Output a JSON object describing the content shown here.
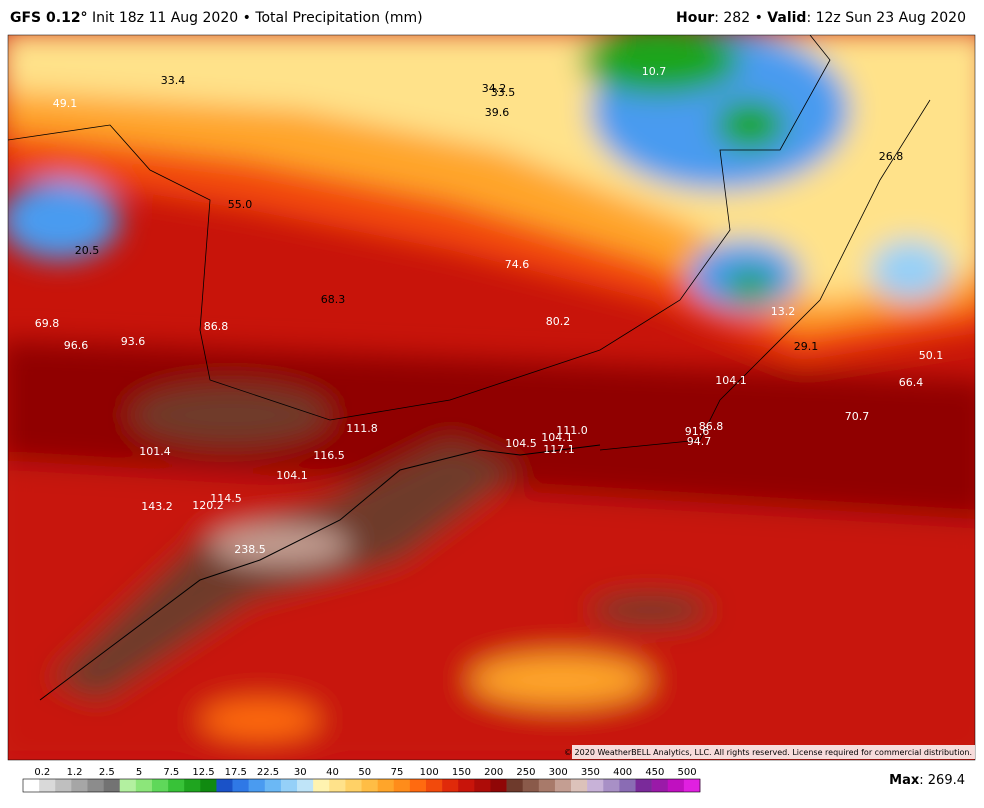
{
  "header": {
    "model": "GFS 0.12°",
    "init": "Init 18z 11 Aug 2020",
    "separator": "•",
    "product": "Total Precipitation (mm)",
    "hour_label": "Hour",
    "hour": "282",
    "valid_label": "Valid",
    "valid": "12z Sun 23 Aug 2020"
  },
  "map": {
    "labels": [
      "33.4",
      "49.1",
      "34.2",
      "33.5",
      "39.6",
      "10.7",
      "26.8",
      "55.0",
      "20.5",
      "74.6",
      "68.3",
      "13.2",
      "69.8",
      "86.8",
      "80.2",
      "96.6",
      "93.6",
      "29.1",
      "50.1",
      "104.1",
      "66.4",
      "70.7",
      "111.8",
      "111.0",
      "91.6",
      "86.8",
      "104.1",
      "104.5",
      "94.7",
      "117.1",
      "101.4",
      "116.5",
      "104.1",
      "114.5",
      "143.2",
      "120.2",
      "238.5"
    ],
    "copyright": "© 2020 WeatherBELL Analytics, LLC. All rights reserved. License required for commercial distribution."
  },
  "colorbar": {
    "ticks": [
      "0.2",
      "1.2",
      "2.5",
      "5",
      "7.5",
      "12.5",
      "17.5",
      "22.5",
      "30",
      "40",
      "50",
      "75",
      "100",
      "150",
      "200",
      "250",
      "300",
      "350",
      "400",
      "450",
      "500"
    ],
    "colors": [
      "#ffffff",
      "#d9d9d9",
      "#bfbfbf",
      "#a6a6a6",
      "#8c8c8c",
      "#737373",
      "#b3f0a0",
      "#8ce67a",
      "#5fd85a",
      "#38c238",
      "#1fa51f",
      "#108a10",
      "#1a52c8",
      "#2f78e6",
      "#4a9bf0",
      "#6bb8f5",
      "#95d0f8",
      "#bfe4f8",
      "#fff3b0",
      "#ffe28a",
      "#ffd166",
      "#ffbd45",
      "#ffa52a",
      "#ff8c1a",
      "#ff6a10",
      "#f24a0c",
      "#e02a0a",
      "#c8140a",
      "#ad0c08",
      "#900606",
      "#6e3a2c",
      "#8a5a4a",
      "#a87a6a",
      "#c49e92",
      "#dcc2ba",
      "#c8b2d8",
      "#a890c6",
      "#8a6cb4",
      "#7a2a9a",
      "#9a1aa8",
      "#c010c0",
      "#e020e0"
    ]
  },
  "max": {
    "label": "Max",
    "value": "269.4"
  }
}
